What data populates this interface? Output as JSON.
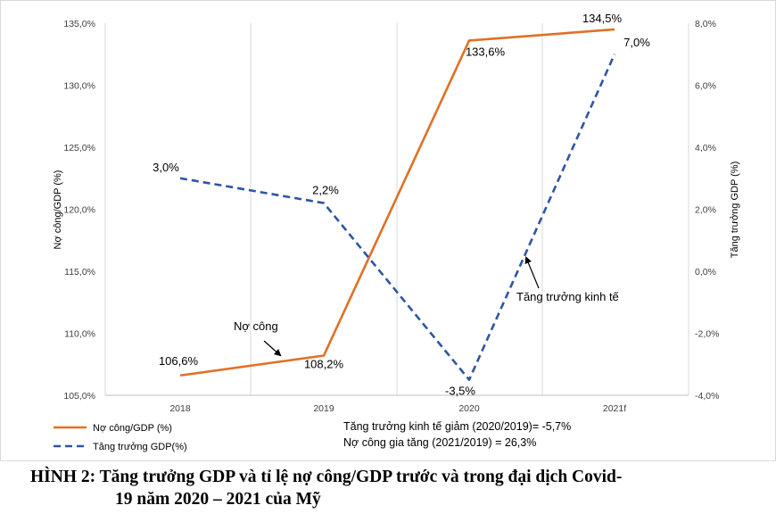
{
  "chart_data": {
    "type": "line",
    "categories": [
      "2018",
      "2019",
      "2020",
      "2021f"
    ],
    "ylabel_left": "Nợ công/GDP (%)",
    "ylabel_right": "Tăng trưởng GDP (%)",
    "left_ylim": [
      105,
      135
    ],
    "left_ticks": [
      "105,0%",
      "110,0%",
      "115,0%",
      "120,0%",
      "125,0%",
      "130,0%",
      "135,0%"
    ],
    "right_ylim": [
      -4,
      8
    ],
    "right_ticks": [
      "-4,0%",
      "-2,0%",
      "0,0%",
      "2,0%",
      "4,0%",
      "6,0%",
      "8,0%"
    ],
    "grid": "vertical",
    "series": [
      {
        "name": "Nợ công/GDP (%)",
        "axis": "left",
        "color": "#E07126",
        "dash": "solid",
        "values": [
          106.6,
          108.2,
          133.6,
          134.5
        ],
        "labels": [
          "106,6%",
          "108,2%",
          "133,6%",
          "134,5%"
        ]
      },
      {
        "name": "Tăng trưởng GDP(%)",
        "axis": "right",
        "color": "#2F55A4",
        "dash": "dashed",
        "values": [
          3.0,
          2.2,
          -3.5,
          7.0
        ],
        "labels": [
          "3,0%",
          "2,2%",
          "-3,5%",
          "7,0%"
        ]
      }
    ],
    "annotations": [
      {
        "text": "Nợ công",
        "points_to": "Nợ công/GDP (%)"
      },
      {
        "text": "Tăng trưởng kinh tế",
        "points_to": "Tăng trưởng GDP(%)"
      }
    ],
    "notes": [
      "Tăng trưởng kinh tế giảm (2020/2019)= -5,7%",
      "Nợ công gia tăng (2021/2019) = 26,3%"
    ],
    "legend_position": "bottom-left"
  },
  "caption": {
    "line1": "HÌNH 2: Tăng trưởng GDP và tỉ lệ nợ công/GDP trước và trong đại dịch Covid-",
    "line2": "19 năm 2020 – 2021 của Mỹ"
  }
}
